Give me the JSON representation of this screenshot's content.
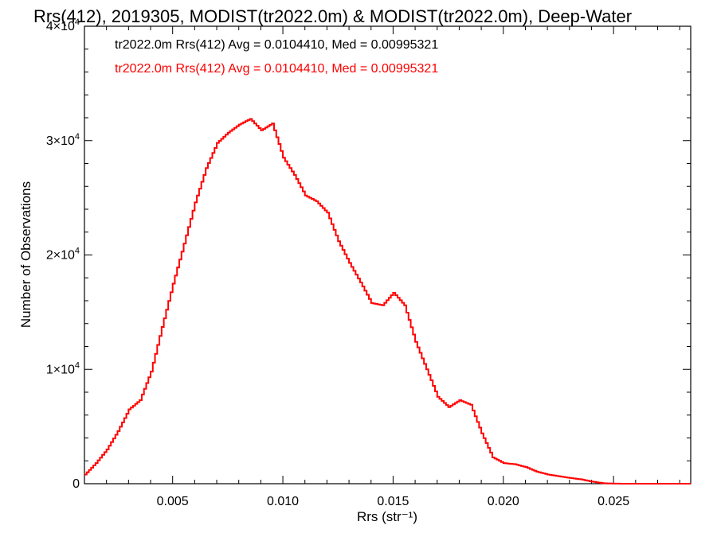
{
  "chart_data": {
    "type": "histogram",
    "title": "Rrs(412), 2019305, MODIST(tr2022.0m) & MODIST(tr2022.0m), Deep-Water",
    "xlabel": "Rrs (str⁻¹)",
    "ylabel": "Number of Observations",
    "xlim": [
      0.001,
      0.0285
    ],
    "ylim": [
      0,
      40000
    ],
    "x_ticks": [
      0.005,
      0.01,
      0.015,
      0.02,
      0.025
    ],
    "x_tick_labels": [
      "0.005",
      "0.010",
      "0.015",
      "0.020",
      "0.025"
    ],
    "y_ticks": [
      0,
      10000,
      20000,
      30000,
      40000
    ],
    "y_tick_labels": [
      {
        "mantissa": "0",
        "exp": ""
      },
      {
        "mantissa": "1×10",
        "exp": "4"
      },
      {
        "mantissa": "2×10",
        "exp": "4"
      },
      {
        "mantissa": "3×10",
        "exp": "4"
      },
      {
        "mantissa": "4×10",
        "exp": "4"
      }
    ],
    "grid": false,
    "legend": [
      {
        "text": "tr2022.0m Rrs(412) Avg = 0.0104410, Med = 0.00995321",
        "color": "#000000"
      },
      {
        "text": "tr2022.0m Rrs(412) Avg = 0.0104410, Med = 0.00995321",
        "color": "#ff0000"
      }
    ],
    "series": [
      {
        "color": "#ff0000",
        "points": [
          [
            0.001,
            800
          ],
          [
            0.0015,
            1800
          ],
          [
            0.002,
            3000
          ],
          [
            0.0025,
            4600
          ],
          [
            0.003,
            6500
          ],
          [
            0.0035,
            7300
          ],
          [
            0.004,
            9800
          ],
          [
            0.0045,
            13700
          ],
          [
            0.005,
            17500
          ],
          [
            0.0055,
            21000
          ],
          [
            0.006,
            24600
          ],
          [
            0.0065,
            27600
          ],
          [
            0.007,
            29800
          ],
          [
            0.0075,
            30700
          ],
          [
            0.008,
            31400
          ],
          [
            0.0085,
            31900
          ],
          [
            0.009,
            30900
          ],
          [
            0.0095,
            31500
          ],
          [
            0.01,
            28500
          ],
          [
            0.0105,
            27000
          ],
          [
            0.011,
            25200
          ],
          [
            0.0115,
            24700
          ],
          [
            0.012,
            23700
          ],
          [
            0.0125,
            21200
          ],
          [
            0.013,
            19300
          ],
          [
            0.0135,
            17600
          ],
          [
            0.014,
            15800
          ],
          [
            0.0145,
            15600
          ],
          [
            0.015,
            16700
          ],
          [
            0.0155,
            15600
          ],
          [
            0.016,
            12400
          ],
          [
            0.0165,
            10000
          ],
          [
            0.017,
            7600
          ],
          [
            0.0175,
            6700
          ],
          [
            0.018,
            7300
          ],
          [
            0.0185,
            6900
          ],
          [
            0.019,
            4400
          ],
          [
            0.0195,
            2300
          ],
          [
            0.02,
            1800
          ],
          [
            0.0205,
            1700
          ],
          [
            0.021,
            1450
          ],
          [
            0.0215,
            1050
          ],
          [
            0.022,
            800
          ],
          [
            0.0225,
            650
          ],
          [
            0.023,
            500
          ],
          [
            0.0235,
            380
          ],
          [
            0.024,
            180
          ],
          [
            0.0245,
            40
          ],
          [
            0.025,
            10
          ],
          [
            0.0255,
            0
          ],
          [
            0.026,
            0
          ],
          [
            0.027,
            0
          ],
          [
            0.028,
            0
          ],
          [
            0.0285,
            0
          ]
        ]
      }
    ]
  }
}
